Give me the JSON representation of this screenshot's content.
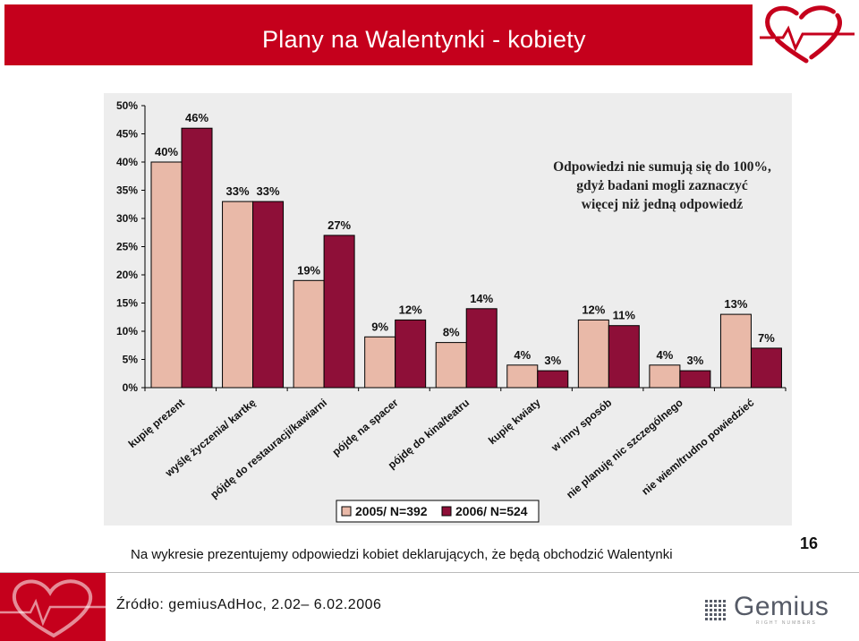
{
  "title": "Plany na Walentynki - kobiety",
  "note": {
    "line1": "Odpowiedzi nie sumują się do 100%,",
    "line2": "gdyż badani mogli zaznaczyć",
    "line3": "więcej niż jedną odpowiedź"
  },
  "caption": "Na wykresie prezentujemy odpowiedzi kobiet deklarujących, że będą obchodzić Walentynki",
  "page_number": "16",
  "source": "Źródło: gemiusAdHoc, 2.02– 6.02.2006",
  "brand": {
    "name": "Gemius",
    "tagline": "RIGHT  NUMBERS",
    "accent": "#c5001c"
  },
  "chart_data": {
    "type": "bar",
    "categories": [
      "kupię prezent",
      "wyślę życzenia/ kartkę",
      "pójdę do restauracji/kawiarni",
      "pójdę na spacer",
      "pójdę do kina/teatru",
      "kupię kwiaty",
      "w inny sposób",
      "nie planuję nic szczególnego",
      "nie wiem/trudno powiedzieć"
    ],
    "series": [
      {
        "name": "2005/ N=392",
        "color": "#e9b9a8",
        "values": [
          40,
          33,
          19,
          9,
          8,
          4,
          12,
          4,
          13
        ],
        "labels": [
          "40%",
          "33%",
          "19%",
          "9%",
          "8%",
          "4%",
          "12%",
          "4%",
          "13%"
        ]
      },
      {
        "name": "2006/ N=524",
        "color": "#8e0f38",
        "values": [
          46,
          33,
          27,
          12,
          14,
          3,
          11,
          3,
          7
        ],
        "labels": [
          "46%",
          "33%",
          "27%",
          "12%",
          "14%",
          "3%",
          "11%",
          "3%",
          "7%"
        ]
      }
    ],
    "yticks": [
      "50%",
      "45%",
      "40%",
      "35%",
      "30%",
      "25%",
      "20%",
      "15%",
      "10%",
      "5%",
      "0%"
    ],
    "ylim": [
      0,
      50
    ],
    "grid": false,
    "legend_position": "bottom"
  }
}
